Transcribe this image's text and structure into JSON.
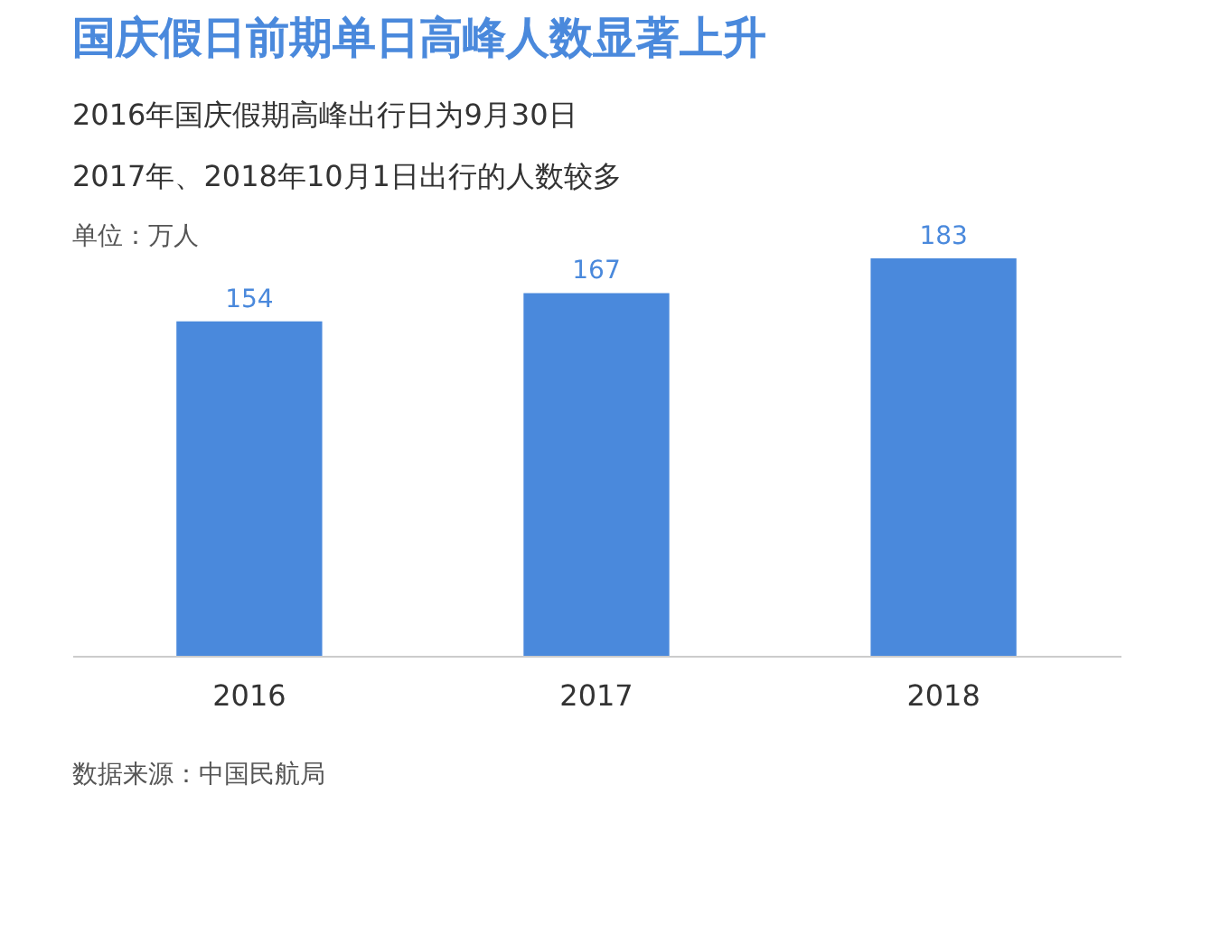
{
  "chart_data": {
    "type": "bar",
    "title": "国庆假日前期单日高峰人数显著上升",
    "subtitle": [
      "2016年国庆假期高峰出行日为9月30日",
      "2017年、2018年10月1日出行的人数较多"
    ],
    "annotations": [
      "单位：万人",
      "数据来源：中国民航局"
    ],
    "categories": [
      "2016",
      "2017",
      "2018"
    ],
    "values": [
      154,
      167,
      183
    ],
    "color": "#4a89dc",
    "data_labels": true,
    "tick_labels": "x",
    "grid": false
  }
}
